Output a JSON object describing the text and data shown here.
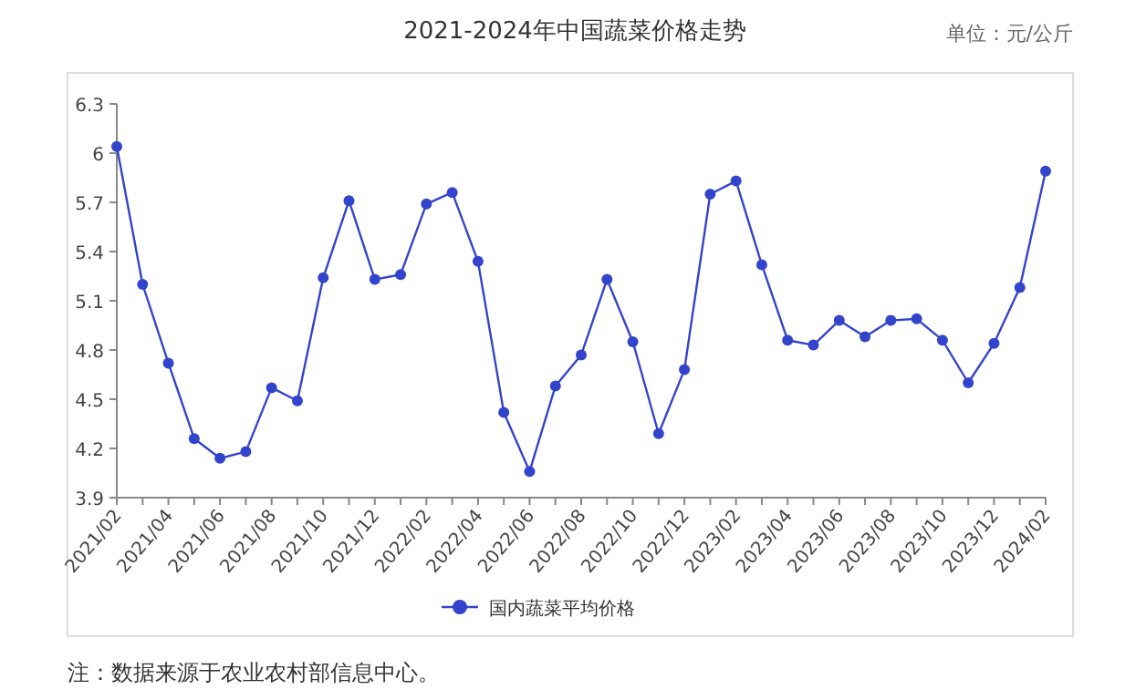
{
  "chart_data": {
    "type": "line",
    "title": "2021-2024年中国蔬菜价格走势",
    "annotations": [
      "单位：元/公斤",
      "注：数据来源于农业农村部信息中心。"
    ],
    "categories": [
      "2021/02",
      null,
      "2021/04",
      null,
      "2021/06",
      null,
      "2021/08",
      null,
      "2021/10",
      null,
      "2021/12",
      null,
      "2022/02",
      null,
      "2022/04",
      null,
      "2022/06",
      null,
      "2022/08",
      null,
      "2022/10",
      null,
      "2022/12",
      null,
      "2023/02",
      null,
      "2023/04",
      null,
      "2023/06",
      null,
      "2023/08",
      null,
      "2023/10",
      null,
      "2023/12",
      null,
      "2024/02"
    ],
    "series": [
      {
        "name": "国内蔬菜平均价格",
        "color": "#3344cc",
        "values": [
          6.04,
          5.2,
          4.72,
          4.26,
          4.14,
          4.18,
          4.57,
          4.49,
          5.24,
          5.71,
          5.23,
          5.26,
          5.69,
          5.76,
          5.34,
          4.42,
          4.06,
          4.58,
          4.77,
          5.23,
          4.85,
          4.29,
          4.68,
          5.75,
          5.83,
          5.32,
          4.86,
          4.83,
          4.98,
          4.88,
          4.98,
          4.99,
          4.86,
          4.6,
          4.84,
          5.18,
          5.89
        ]
      }
    ],
    "ylim": [
      3.9,
      6.3
    ],
    "yticks": [
      3.9,
      4.2,
      4.5,
      4.8,
      5.1,
      5.4,
      5.7,
      6,
      6.3
    ],
    "grid": false,
    "legend": "bottom",
    "marker": "circle",
    "line_style": "solid"
  }
}
